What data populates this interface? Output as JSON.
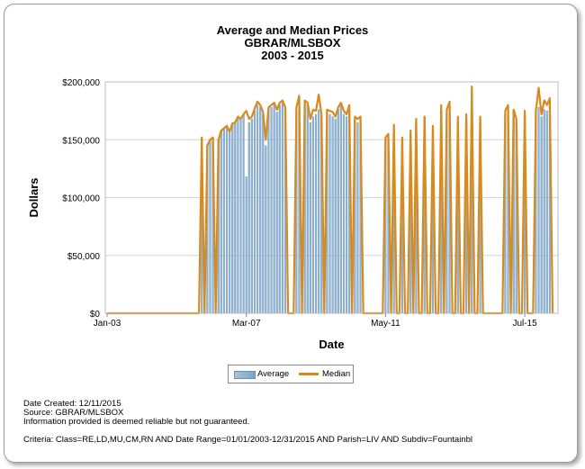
{
  "chart_data": {
    "type": "bar",
    "title": "Average and Median Prices",
    "subtitle_1": "GBRAR/MLSBOX",
    "subtitle_2": "2003 - 2015",
    "xlabel": "Date",
    "ylabel": "Dollars",
    "ylim": [
      0,
      200000
    ],
    "y_ticks": [
      {
        "value": 0,
        "label": "$0"
      },
      {
        "value": 50000,
        "label": "$50,000"
      },
      {
        "value": 100000,
        "label": "$100,000"
      },
      {
        "value": 150000,
        "label": "$150,000"
      },
      {
        "value": 200000,
        "label": "$200,000"
      }
    ],
    "x_ticks": [
      {
        "index": 0,
        "label": "Jan-03"
      },
      {
        "index": 50,
        "label": "Mar-07"
      },
      {
        "index": 100,
        "label": "May-11"
      },
      {
        "index": 150,
        "label": "Jul-15"
      }
    ],
    "legend_position": "bottom",
    "colors": {
      "average": "#8fb3d2",
      "median": "#d98a1c",
      "grid": "#d4d4d4"
    },
    "series": [
      {
        "name": "Average",
        "type": "bar",
        "values": [
          0,
          0,
          0,
          0,
          0,
          0,
          0,
          0,
          0,
          0,
          0,
          0,
          0,
          0,
          0,
          0,
          0,
          0,
          0,
          0,
          0,
          0,
          0,
          0,
          0,
          0,
          0,
          0,
          0,
          0,
          0,
          0,
          0,
          0,
          150000,
          0,
          145000,
          150000,
          152000,
          0,
          150000,
          158000,
          160000,
          162000,
          157000,
          164000,
          165000,
          170000,
          168000,
          172000,
          118000,
          165000,
          168000,
          175000,
          180000,
          178000,
          172000,
          145000,
          176000,
          178000,
          180000,
          174000,
          180000,
          182000,
          176000,
          0,
          0,
          0,
          176000,
          178000,
          0,
          182000,
          180000,
          165000,
          170000,
          172000,
          176000,
          170000,
          0,
          174000,
          172000,
          170000,
          168000,
          176000,
          180000,
          172000,
          170000,
          175000,
          0,
          168000,
          165000,
          170000,
          0,
          0,
          0,
          0,
          0,
          0,
          0,
          0,
          150000,
          152000,
          0,
          160000,
          0,
          0,
          150000,
          0,
          0,
          155000,
          0,
          165000,
          0,
          0,
          170000,
          0,
          0,
          160000,
          0,
          0,
          175000,
          0,
          172000,
          178000,
          0,
          0,
          165000,
          0,
          0,
          170000,
          0,
          175000,
          0,
          0,
          168000,
          0,
          0,
          0,
          0,
          0,
          0,
          0,
          0,
          172000,
          178000,
          0,
          174000,
          165000,
          0,
          0,
          170000,
          0,
          0,
          0,
          172000,
          178000,
          170000,
          176000,
          175000,
          180000,
          0
        ]
      },
      {
        "name": "Median",
        "type": "line",
        "values": [
          0,
          0,
          0,
          0,
          0,
          0,
          0,
          0,
          0,
          0,
          0,
          0,
          0,
          0,
          0,
          0,
          0,
          0,
          0,
          0,
          0,
          0,
          0,
          0,
          0,
          0,
          0,
          0,
          0,
          0,
          0,
          0,
          0,
          0,
          152000,
          0,
          145000,
          150000,
          152000,
          0,
          150000,
          158000,
          160000,
          162000,
          157000,
          164000,
          165000,
          170000,
          168000,
          172000,
          175000,
          168000,
          170000,
          177000,
          183000,
          180000,
          174000,
          150000,
          178000,
          180000,
          182000,
          176000,
          182000,
          184000,
          178000,
          0,
          0,
          0,
          178000,
          188000,
          0,
          184000,
          182000,
          168000,
          176000,
          175000,
          189000,
          172000,
          0,
          176000,
          175000,
          174000,
          170000,
          178000,
          182000,
          175000,
          172000,
          180000,
          0,
          170000,
          168000,
          170000,
          0,
          0,
          0,
          0,
          0,
          0,
          0,
          0,
          152000,
          155000,
          0,
          163000,
          0,
          0,
          152000,
          0,
          0,
          158000,
          0,
          168000,
          0,
          0,
          170000,
          0,
          0,
          162000,
          0,
          0,
          180000,
          0,
          176000,
          183000,
          0,
          0,
          170000,
          0,
          0,
          172000,
          0,
          196000,
          0,
          0,
          170000,
          0,
          0,
          0,
          0,
          0,
          0,
          0,
          0,
          175000,
          180000,
          0,
          176000,
          168000,
          0,
          0,
          175000,
          0,
          0,
          0,
          175000,
          195000,
          172000,
          184000,
          180000,
          186000,
          0
        ]
      }
    ]
  },
  "footer": {
    "created": "Date Created: 12/11/2015",
    "source": "Source: GBRAR/MLSBOX",
    "disclaimer": "Information provided is deemed reliable but not guaranteed.",
    "criteria": "Criteria: Class=RE,LD,MU,CM,RN AND Date Range=01/01/2003-12/31/2015 AND Parish=LIV AND Subdiv=Fountainbl"
  }
}
